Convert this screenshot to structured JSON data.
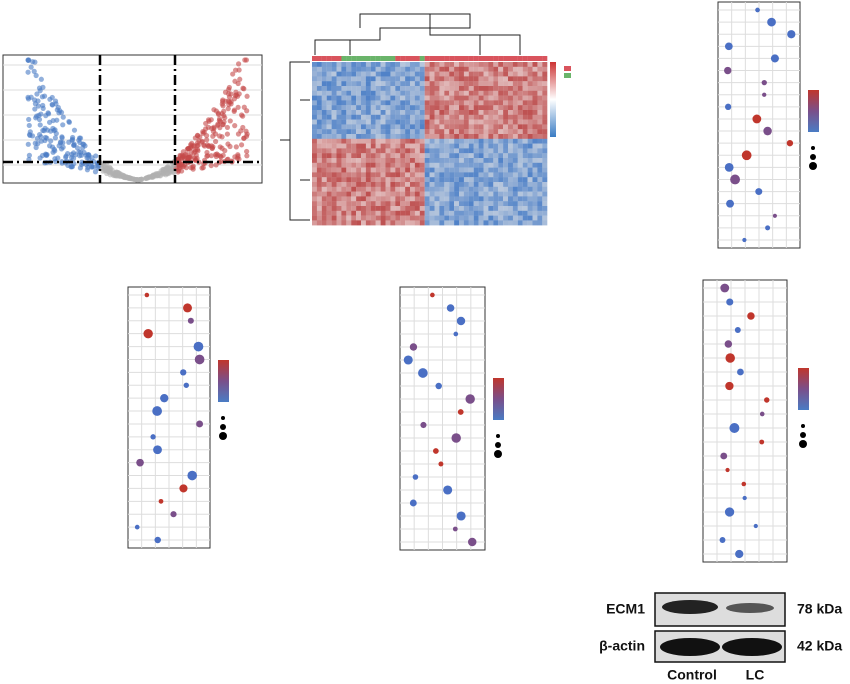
{
  "western_blot": {
    "rows": [
      {
        "label": "ECM1",
        "size": "78 kDa"
      },
      {
        "label": "β-actin",
        "size": "42 kDa"
      }
    ],
    "lanes": [
      "Control",
      "LC"
    ]
  }
}
